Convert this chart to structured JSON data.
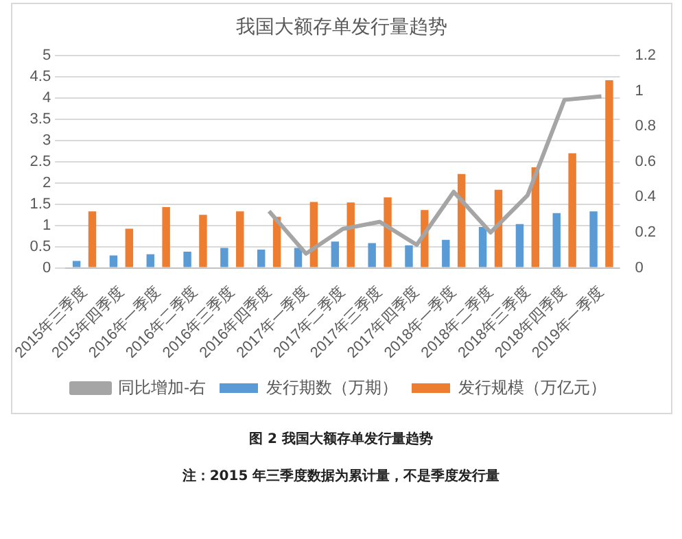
{
  "chart_data": {
    "type": "bar",
    "title": "我国大额存单发行量趋势",
    "categories": [
      "2015年三季度",
      "2015年四季度",
      "2016年一季度",
      "2016年二季度",
      "2016年三季度",
      "2016年四季度",
      "2017年一季度",
      "2017年二季度",
      "2017年三季度",
      "2017年四季度",
      "2018年一季度",
      "2018年二季度",
      "2018年三季度",
      "2018年四季度",
      "2019年一季度"
    ],
    "series": [
      {
        "name": "发行期数（万期）",
        "color": "#5b9bd5",
        "values": [
          0.16,
          0.29,
          0.32,
          0.38,
          0.47,
          0.43,
          0.47,
          0.62,
          0.58,
          0.53,
          0.66,
          0.96,
          1.03,
          1.29,
          1.33
        ]
      },
      {
        "name": "发行规模（万亿元）",
        "color": "#ed7d31",
        "values": [
          1.33,
          0.92,
          1.43,
          1.25,
          1.33,
          1.2,
          1.55,
          1.54,
          1.66,
          1.36,
          2.21,
          1.84,
          2.37,
          2.7,
          4.42
        ]
      },
      {
        "name": "同比增加-右",
        "type": "line",
        "axis": "y2",
        "color": "#a5a5a5",
        "values": [
          null,
          null,
          null,
          null,
          null,
          0.32,
          0.08,
          0.22,
          0.26,
          0.13,
          0.43,
          0.2,
          0.41,
          0.95,
          0.97
        ]
      }
    ],
    "ylim": [
      0,
      5
    ],
    "yticks": [
      0,
      0.5,
      1,
      1.5,
      2,
      2.5,
      3,
      3.5,
      4,
      4.5,
      5
    ],
    "y2lim": [
      0,
      1.2
    ],
    "y2ticks": [
      0,
      0.2,
      0.4,
      0.6,
      0.8,
      1,
      1.2
    ],
    "grid": "y",
    "legend": "bottom",
    "marker": "none",
    "annotations": [
      "图 2 我国大额存单发行量趋势",
      "注：2015 年三季度数据为累计量，不是季度发行量"
    ]
  }
}
